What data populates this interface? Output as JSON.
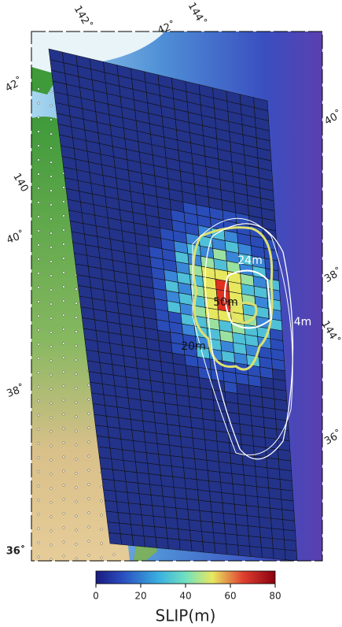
{
  "map": {
    "top_labels": [
      "142˚",
      "42˚",
      "144˚"
    ],
    "left_labels": [
      "42˚",
      "140",
      "40˚",
      "38˚",
      "36˚"
    ],
    "right_labels": [
      "40˚",
      "38˚",
      "144˚",
      "36˚"
    ],
    "contour_labels": [
      "24m",
      "50m",
      "4m",
      "20m"
    ],
    "colorbar": {
      "title": "SLIP(m)",
      "range": [
        0,
        80
      ],
      "ticks": [
        0,
        20,
        40,
        60,
        80
      ]
    }
  }
}
